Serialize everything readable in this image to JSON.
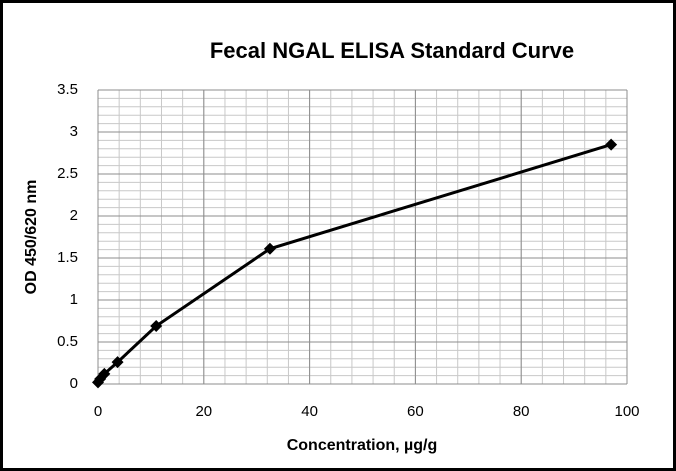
{
  "chart_data": {
    "type": "line",
    "title": "Fecal NGAL ELISA Standard Curve",
    "x_label": "Concentration, µg/g",
    "y_label": "OD 450/620  nm",
    "x": [
      0,
      0.4,
      1.2,
      3.7,
      11,
      32.5,
      97
    ],
    "series": [
      {
        "name": "OD",
        "color": "#000000",
        "values": [
          0.02,
          0.06,
          0.12,
          0.26,
          0.69,
          1.61,
          2.85
        ]
      }
    ],
    "xlim": [
      0,
      100
    ],
    "xticks": [
      0,
      20,
      40,
      60,
      80,
      100
    ],
    "ylim": [
      0,
      3.5
    ],
    "yticks": [
      0,
      0.5,
      1,
      1.5,
      2,
      2.5,
      3,
      3.5
    ],
    "grid": true,
    "x_minor_step": 4,
    "y_minor_step": 0.1,
    "marker": "diamond"
  }
}
